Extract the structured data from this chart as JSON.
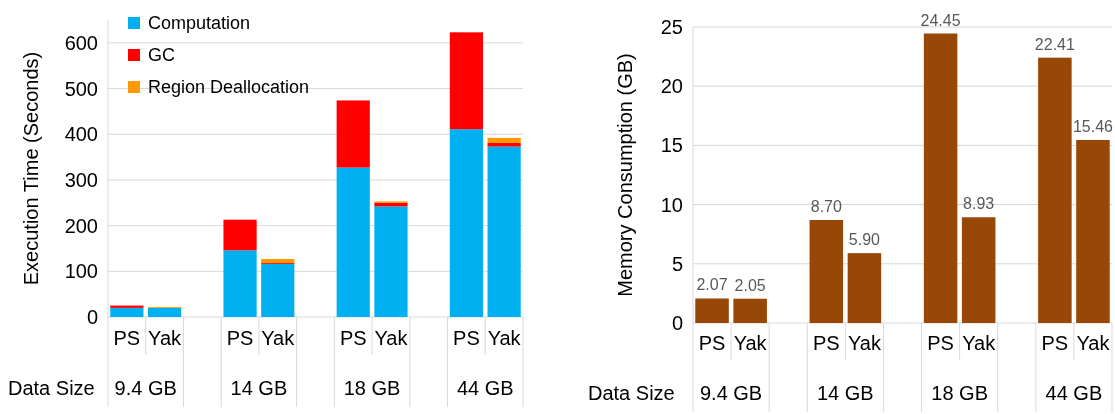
{
  "chart_data": [
    {
      "type": "bar",
      "stacked": true,
      "ylabel": "Execution Time (Seconds)",
      "xlabel": "Data Size",
      "categories": [
        "PS",
        "Yak",
        null,
        "PS",
        "Yak",
        null,
        "PS",
        "Yak",
        null,
        "PS",
        "Yak"
      ],
      "series": [
        {
          "name": "Computation",
          "color": "#00b0f0",
          "values": [
            20,
            20,
            null,
            146,
            116,
            null,
            327,
            242,
            null,
            411,
            373
          ]
        },
        {
          "name": "GC",
          "color": "#ff0000",
          "values": [
            5,
            null,
            null,
            67,
            2,
            null,
            147,
            8,
            null,
            212,
            8
          ]
        },
        {
          "name": "Region Deallocation",
          "color": "#ff9900",
          "values": [
            0,
            2,
            null,
            0,
            9,
            null,
            0,
            3,
            null,
            0,
            11
          ]
        }
      ],
      "annotations": [
        "9.4 GB",
        "14 GB",
        "18 GB",
        "44 GB"
      ],
      "ylim": [
        0,
        650
      ],
      "yticks": [
        0,
        100,
        200,
        300,
        400,
        500,
        600
      ],
      "grid": "y",
      "legend": "top left"
    },
    {
      "type": "bar",
      "ylabel": "Memory Consumption (GB)",
      "xlabel": "Data Size",
      "categories": [
        "PS",
        "Yak",
        null,
        "PS",
        "Yak",
        null,
        "PS",
        "Yak",
        null,
        "PS",
        "Yak"
      ],
      "series": [
        {
          "color": "#974706",
          "values": [
            2.07,
            2.05,
            null,
            8.7,
            5.9,
            null,
            24.45,
            8.93,
            null,
            22.41,
            15.46
          ],
          "value_labels": [
            "2.07",
            "2.05",
            null,
            "8.70",
            "5.90",
            null,
            "24.45",
            "8.93",
            null,
            "22.41",
            "15.46"
          ]
        }
      ],
      "annotations": [
        "9.4 GB",
        "14 GB",
        "18 GB",
        "44 GB"
      ],
      "ylim": [
        0,
        25
      ],
      "yticks": [
        0,
        5,
        10,
        15,
        20,
        25
      ],
      "grid": "y"
    }
  ]
}
